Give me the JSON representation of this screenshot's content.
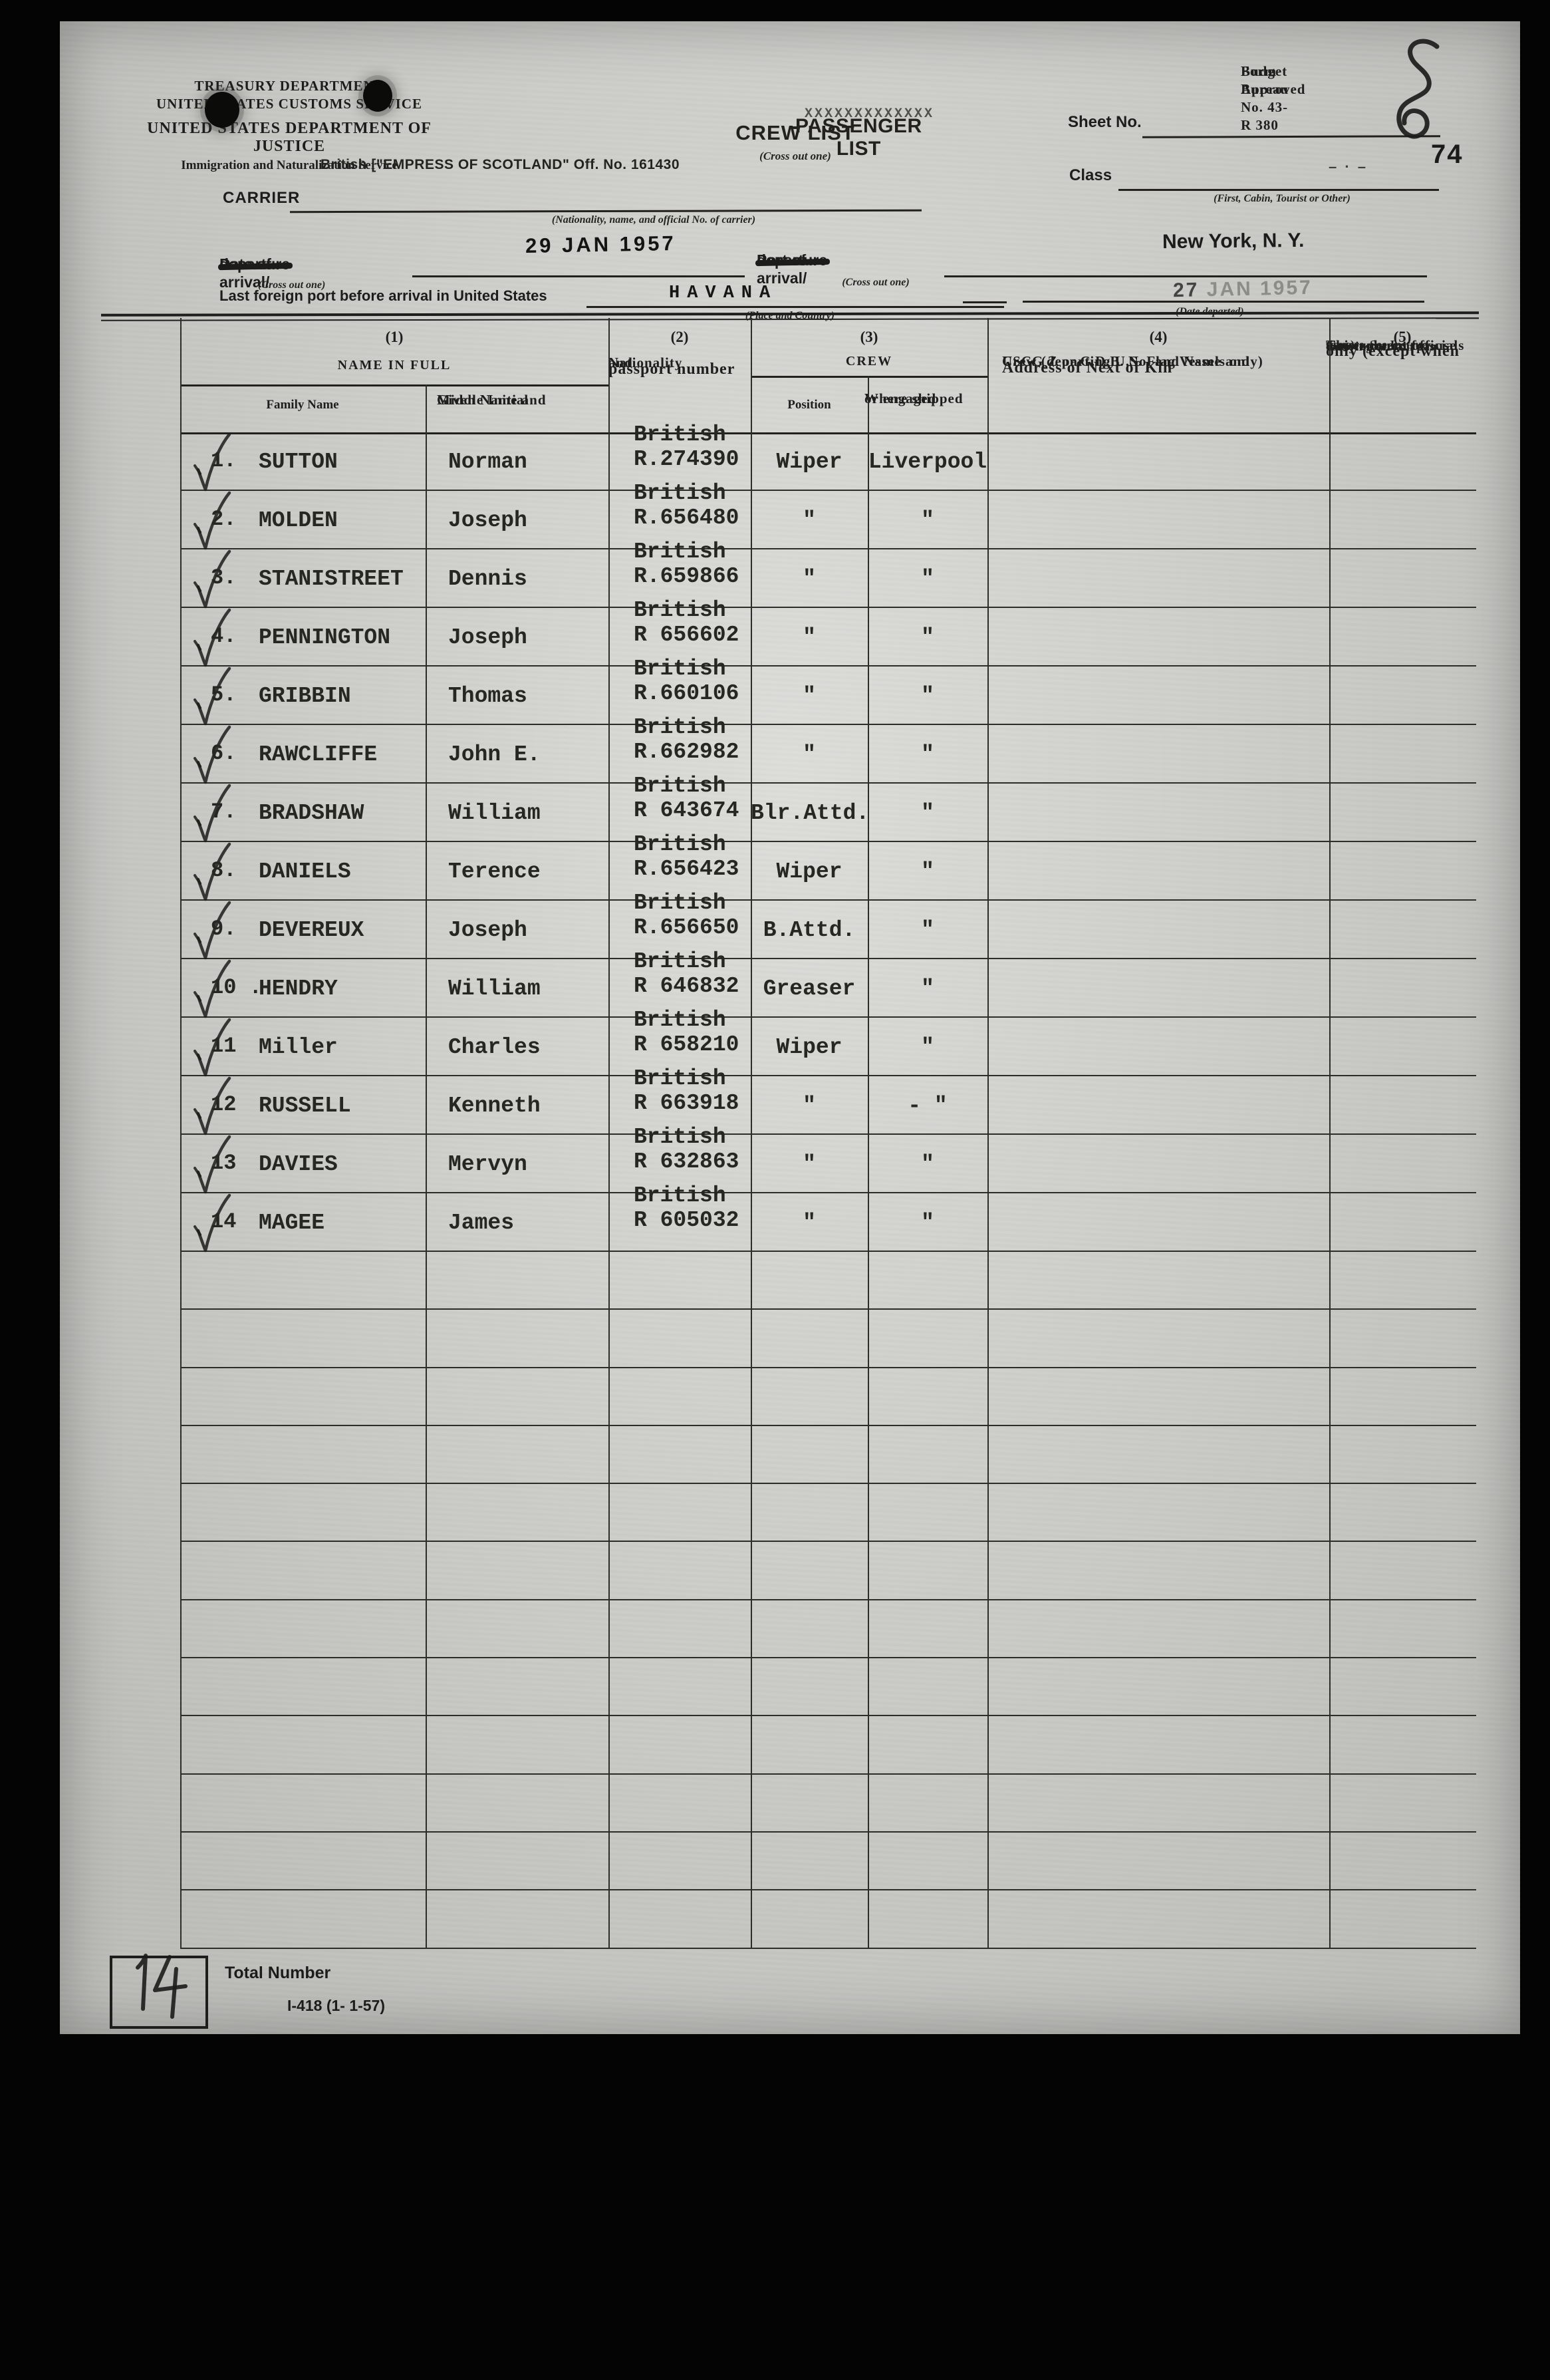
{
  "colors": {
    "paper": "#d3d3cf",
    "background": "#040404",
    "ink": "#22211e",
    "faint_stamp": "#77766f"
  },
  "header": {
    "agency_lines": [
      "TREASURY DEPARTMENT",
      "UNITED STATES CUSTOMS SERVICE",
      "UNITED STATES DEPARTMENT OF JUSTICE",
      "Immigration and Naturalization Service"
    ],
    "form_approved_lines": [
      "Form Approved",
      "Budget Bureau No. 43-R 380"
    ],
    "passenger_list_label": "PASSENGER LIST",
    "crossout_overlay": "XXXXXXXXXXXXX",
    "crew_list_label": "CREW LIST",
    "cross_out_one": "(Cross out one)",
    "vessel_line": "British [\"EMPRESS OF SCOTLAND\" Off. No. 161430",
    "sheet_no_label": "Sheet No.",
    "sheet_no_handwritten": "8",
    "page_stamp": "74",
    "dashes": "– · –",
    "class_label": "Class",
    "class_hint": "(First, Cabin, Tourist or Other)",
    "carrier_label": "CARRIER",
    "carrier_hint": "(Nationality, name, and official No. of carrier)",
    "arrival_stamp": "29 JAN 1957",
    "date_arrival_label": "Date of arrival/",
    "departure_struck": "departure",
    "port_arrival_label": "Port of arrival/",
    "port_value": "New York, N. Y.",
    "last_port_label": "Last foreign port before arrival in United States",
    "last_port_value": "HAVANA",
    "place_country_hint": "(Place and Country)",
    "date_departed_stamp_day": "27",
    "date_departed_stamp_rest": " JAN 1957",
    "date_departed_hint": "(Date departed)"
  },
  "table": {
    "col1_no": "(1)",
    "col1_title": "NAME IN FULL",
    "family_name_label": "Family Name",
    "given_name_lines": [
      "Given Name and",
      "Middle Initial"
    ],
    "col2_no": "(2)",
    "col2_title_lines": [
      "Nationality",
      "and",
      "passport number"
    ],
    "col3_no": "(3)",
    "col3_title": "CREW",
    "position_label": "Position",
    "where_shipped_lines": [
      "Where shipped",
      "or engaged"
    ],
    "col4_no": "(4)",
    "col4_lines": [
      "Crew (departing U.S. Flag Vessels only)",
      "USCG Z or C.D.B. No. and Name and",
      "Address of Next of Kin"
    ],
    "col5_no": "(5)",
    "col5_lines": [
      "This column for use",
      "Government officials",
      "only (except when",
      "carrying certain pas-",
      "sengers. See Instruc-",
      "tions)"
    ],
    "rows": [
      {
        "no": "1.",
        "family": "SUTTON",
        "given": "Norman",
        "nationality": "British",
        "passport": "R.274390",
        "position": "Wiper",
        "where": "Liverpool"
      },
      {
        "no": "2.",
        "family": "MOLDEN",
        "given": "Joseph",
        "nationality": "British",
        "passport": "R.656480",
        "position": "\"",
        "where": "\""
      },
      {
        "no": "3.",
        "family": "STANISTREET",
        "given": "Dennis",
        "nationality": "British",
        "passport": "R.659866",
        "position": "\"",
        "where": "\""
      },
      {
        "no": "4.",
        "family": "PENNINGTON",
        "given": "Joseph",
        "nationality": "British",
        "passport": "R 656602",
        "position": "\"",
        "where": "\""
      },
      {
        "no": "5.",
        "family": "GRIBBIN",
        "given": "Thomas",
        "nationality": "British",
        "passport": "R.660106",
        "position": "\"",
        "where": "\""
      },
      {
        "no": "6.",
        "family": "RAWCLIFFE",
        "given": "John E.",
        "nationality": "British",
        "passport": "R.662982",
        "position": "\"",
        "where": "\""
      },
      {
        "no": "7.",
        "family": "BRADSHAW",
        "given": "William",
        "nationality": "British",
        "passport": "R 643674",
        "position": "Blr.Attd.",
        "where": "\""
      },
      {
        "no": "8.",
        "family": "DANIELS",
        "given": "Terence",
        "nationality": "British",
        "passport": "R.656423",
        "position": "Wiper",
        "where": "\""
      },
      {
        "no": "9.",
        "family": "DEVEREUX",
        "given": "Joseph",
        "nationality": "British",
        "passport": "R.656650",
        "position": "B.Attd.",
        "where": "\""
      },
      {
        "no": "10 .",
        "family": "HENDRY",
        "given": "William",
        "nationality": "British",
        "passport": "R 646832",
        "position": "Greaser",
        "where": "\""
      },
      {
        "no": "11",
        "family": "Miller",
        "given": "Charles",
        "nationality": "British",
        "passport": "R 658210",
        "position": "Wiper",
        "where": "\""
      },
      {
        "no": "12",
        "family": "RUSSELL",
        "given": "Kenneth",
        "nationality": "British",
        "passport": "R 663918",
        "position": "\"",
        "where": "- \""
      },
      {
        "no": "13",
        "family": "DAVIES",
        "given": "Mervyn",
        "nationality": "British",
        "passport": "R 632863",
        "position": "\"",
        "where": "\""
      },
      {
        "no": "14",
        "family": "MAGEE",
        "given": "James",
        "nationality": "British",
        "passport": "R 605032",
        "position": "\"",
        "where": "\""
      }
    ],
    "empty_row_count": 12
  },
  "footer": {
    "total_number_handwritten": "14",
    "total_number_label": "Total Number",
    "form_code": "I-418 (1- 1-57)"
  }
}
